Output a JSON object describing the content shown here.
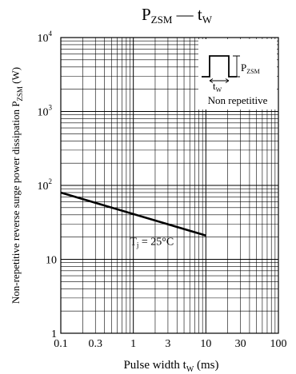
{
  "chart_data": {
    "type": "line",
    "title": {
      "main": "P",
      "main_sub": "ZSM",
      "dash": " — ",
      "var": "t",
      "var_sub": "W"
    },
    "xlabel": {
      "text": "Pulse width  t",
      "sub": "W",
      "unit": "  (ms)"
    },
    "ylabel": {
      "text": "Non-repetitive reverse surge power dissipation  P",
      "sub": "ZSM",
      "unit": "  (W)"
    },
    "x_scale": "log",
    "y_scale": "log",
    "xlim": [
      0.1,
      100
    ],
    "ylim": [
      1,
      10000
    ],
    "x_ticks": [
      {
        "value": 0.1,
        "label": "0.1"
      },
      {
        "value": 0.3,
        "label": "0.3"
      },
      {
        "value": 1,
        "label": "1"
      },
      {
        "value": 3,
        "label": "3"
      },
      {
        "value": 10,
        "label": "10"
      },
      {
        "value": 30,
        "label": "30"
      },
      {
        "value": 100,
        "label": "100"
      }
    ],
    "y_ticks": [
      {
        "value": 1,
        "label": "1",
        "sup": ""
      },
      {
        "value": 10,
        "label": "10",
        "sup": ""
      },
      {
        "value": 100,
        "label": "10",
        "sup": "2"
      },
      {
        "value": 1000,
        "label": "10",
        "sup": "3"
      },
      {
        "value": 10000,
        "label": "10",
        "sup": "4"
      }
    ],
    "grid": true,
    "series": [
      {
        "x": [
          0.1,
          10
        ],
        "y": [
          80,
          21
        ],
        "label": {
          "t": "T",
          "sub": "j",
          "rest": " = 25°C"
        }
      }
    ],
    "inset": {
      "pulse_label": "P",
      "pulse_label_sub": "ZSM",
      "width_label": "t",
      "width_label_sub": "W",
      "caption": "Non repetitive"
    }
  }
}
